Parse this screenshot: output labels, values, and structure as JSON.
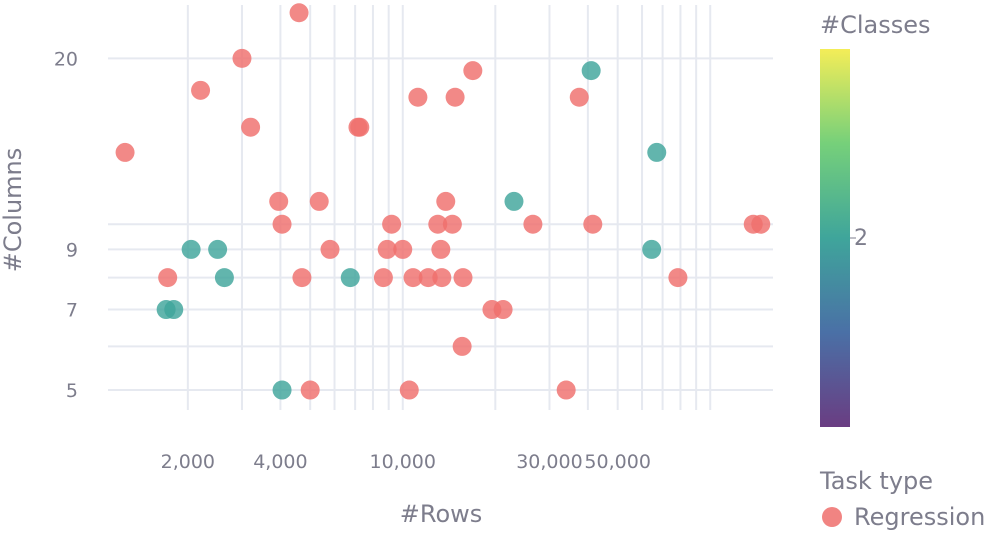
{
  "chart_data": {
    "type": "scatter",
    "xlabel": "#Rows",
    "ylabel": "#Columns",
    "x_scale": "log",
    "y_scale": "log",
    "xlim": [
      1100,
      160000
    ],
    "ylim": [
      4.6,
      25
    ],
    "x_ticks": [
      {
        "value": 2000,
        "label": "2,000"
      },
      {
        "value": 4000,
        "label": "4,000"
      },
      {
        "value": 10000,
        "label": "10,000"
      },
      {
        "value": 30000,
        "label": "30,000"
      },
      {
        "value": 50000,
        "label": "50,000"
      }
    ],
    "y_ticks": [
      {
        "value": 5,
        "label": "5"
      },
      {
        "value": 7,
        "label": "7"
      },
      {
        "value": 9,
        "label": "9"
      },
      {
        "value": 20,
        "label": "20"
      }
    ],
    "x_grid": [
      2000,
      3000,
      4000,
      5000,
      6000,
      7000,
      8000,
      9000,
      10000,
      20000,
      30000,
      40000,
      50000,
      60000,
      70000,
      80000,
      90000,
      100000
    ],
    "y_grid": [
      5,
      6,
      7,
      8,
      9,
      10,
      20
    ],
    "grid": true,
    "colors": {
      "regression": "#ef6f6c",
      "classification": "#3fa59b"
    },
    "colorbar": {
      "title": "#Classes",
      "tick_label": "2",
      "colorscale": [
        "#6a3d82",
        "#4a70a6",
        "#3fa59b",
        "#76d07a",
        "#f4ed58"
      ]
    },
    "legend": {
      "title": "Task type",
      "position": "bottom-right",
      "items": [
        {
          "label": "Regression",
          "color": "#ef6f6c"
        }
      ]
    },
    "series": [
      {
        "task": "regression",
        "points": [
          [
            1250,
            13.5
          ],
          [
            1720,
            8.0
          ],
          [
            2200,
            17.5
          ],
          [
            3000,
            20.0
          ],
          [
            3200,
            15.0
          ],
          [
            3950,
            11.0
          ],
          [
            4050,
            10.0
          ],
          [
            4600,
            24.2
          ],
          [
            4700,
            8.0
          ],
          [
            5000,
            5.0
          ],
          [
            5350,
            11.0
          ],
          [
            5800,
            9.0
          ],
          [
            7150,
            15.0
          ],
          [
            7250,
            15.0
          ],
          [
            8650,
            8.0
          ],
          [
            8900,
            9.0
          ],
          [
            9200,
            10.0
          ],
          [
            10000,
            9.0
          ],
          [
            10500,
            5.0
          ],
          [
            10800,
            8.0
          ],
          [
            11200,
            17.0
          ],
          [
            12100,
            8.0
          ],
          [
            13000,
            10.0
          ],
          [
            13300,
            9.0
          ],
          [
            13400,
            8.0
          ],
          [
            13800,
            11.0
          ],
          [
            14500,
            10.0
          ],
          [
            14800,
            17.0
          ],
          [
            15600,
            6.0
          ],
          [
            15700,
            8.0
          ],
          [
            16900,
            19.0
          ],
          [
            19500,
            7.0
          ],
          [
            21200,
            7.0
          ],
          [
            26500,
            10.0
          ],
          [
            34000,
            5.0
          ],
          [
            37500,
            17.0
          ],
          [
            41500,
            10.0
          ],
          [
            78500,
            8.0
          ],
          [
            138000,
            10.0
          ],
          [
            146000,
            10.0
          ]
        ]
      },
      {
        "task": "classification",
        "points": [
          [
            1700,
            7.0
          ],
          [
            1800,
            7.0
          ],
          [
            2050,
            9.0
          ],
          [
            2500,
            9.0
          ],
          [
            2630,
            8.0
          ],
          [
            4050,
            5.0
          ],
          [
            6750,
            8.0
          ],
          [
            23000,
            11.0
          ],
          [
            41000,
            19.0
          ],
          [
            64500,
            9.0
          ],
          [
            67000,
            13.5
          ]
        ]
      }
    ]
  }
}
